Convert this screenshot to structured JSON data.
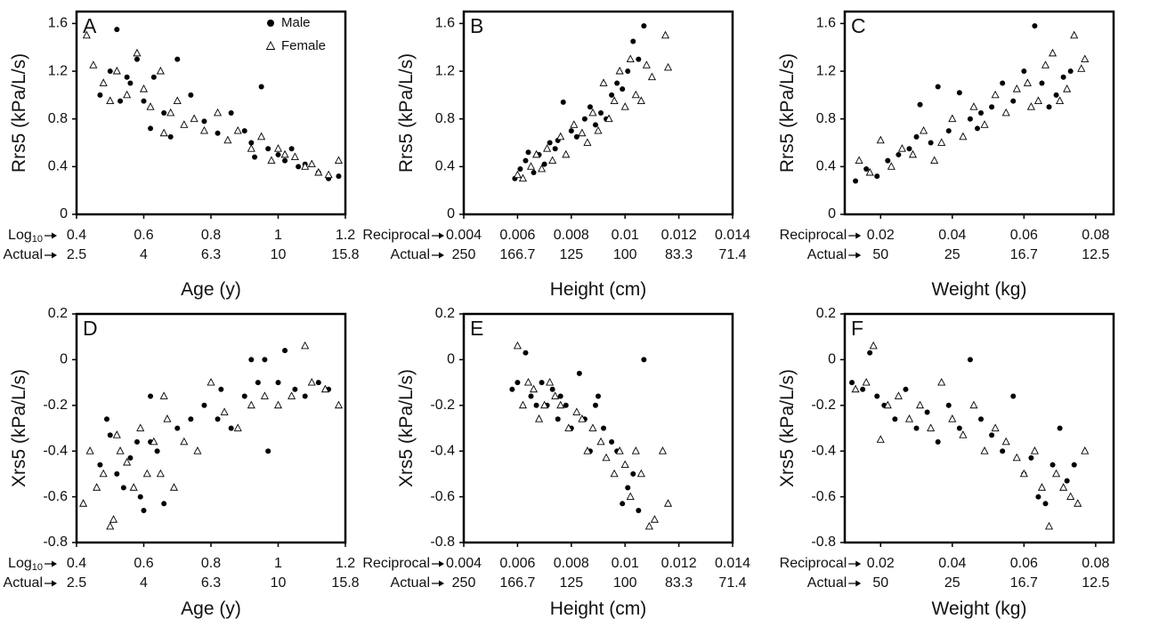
{
  "legend": {
    "male": "Male",
    "female": "Female"
  },
  "tick_labels": {
    "rrs_y": [
      "0",
      "0.4",
      "0.8",
      "1.2",
      "1.6"
    ],
    "xrs_y": [
      "-0.8",
      "-0.6",
      "-0.4",
      "-0.2",
      "0",
      "0.2"
    ],
    "age_log": [
      "0.4",
      "0.6",
      "0.8",
      "1",
      "1.2"
    ],
    "age_actual": [
      "2.5",
      "4",
      "6.3",
      "10",
      "15.8"
    ],
    "height_recip": [
      "0.004",
      "0.006",
      "0.008",
      "0.01",
      "0.012",
      "0.014"
    ],
    "height_actual": [
      "250",
      "166.7",
      "125",
      "100",
      "83.3",
      "71.4"
    ],
    "weight_recip": [
      "0.02",
      "0.04",
      "0.06",
      "0.08"
    ],
    "weight_actual": [
      "50",
      "25",
      "16.7",
      "12.5"
    ]
  },
  "row_names": {
    "log": "Log10",
    "log_base": "Log",
    "log_sub": "10",
    "reciprocal": "Reciprocal",
    "actual": "Actual"
  },
  "chart_data": [
    {
      "panel": "A",
      "type": "scatter",
      "xlabel": "Age (y)",
      "ylabel": "Rrs5 (kPa/L/s)",
      "x_scale": "log10",
      "xlim": [
        0.4,
        1.2
      ],
      "ylim": [
        0,
        1.7
      ],
      "legend_position": "top-right",
      "series": [
        {
          "name": "Male",
          "x": [
            0.47,
            0.5,
            0.52,
            0.53,
            0.55,
            0.58,
            0.6,
            0.62,
            0.66,
            0.7,
            0.74,
            0.78,
            0.82,
            0.86,
            0.9,
            0.92,
            0.95,
            0.97,
            1.0,
            1.02,
            1.04,
            1.06,
            1.08,
            1.12,
            1.15,
            1.18,
            0.63,
            0.93,
            0.56,
            0.68
          ],
          "y": [
            1.0,
            1.2,
            1.55,
            0.95,
            1.15,
            1.3,
            0.95,
            0.72,
            0.85,
            1.3,
            1.0,
            0.78,
            0.68,
            0.85,
            0.7,
            0.6,
            1.07,
            0.55,
            0.5,
            0.45,
            0.55,
            0.4,
            0.42,
            0.35,
            0.3,
            0.32,
            1.15,
            0.48,
            1.1,
            0.65
          ]
        },
        {
          "name": "Female",
          "x": [
            0.43,
            0.45,
            0.48,
            0.5,
            0.52,
            0.55,
            0.58,
            0.6,
            0.62,
            0.65,
            0.68,
            0.7,
            0.72,
            0.75,
            0.78,
            0.82,
            0.85,
            0.88,
            0.92,
            0.95,
            0.98,
            1.0,
            1.02,
            1.05,
            1.08,
            1.1,
            1.12,
            1.15,
            1.18,
            0.66
          ],
          "y": [
            1.5,
            1.25,
            1.1,
            0.95,
            1.2,
            1.0,
            1.35,
            1.05,
            0.9,
            1.2,
            0.85,
            0.95,
            0.75,
            0.8,
            0.7,
            0.85,
            0.62,
            0.7,
            0.55,
            0.65,
            0.45,
            0.55,
            0.5,
            0.48,
            0.4,
            0.42,
            0.35,
            0.33,
            0.45,
            0.68
          ]
        }
      ]
    },
    {
      "panel": "B",
      "type": "scatter",
      "xlabel": "Height (cm)",
      "ylabel": "Rrs5 (kPa/L/s)",
      "x_scale": "reciprocal",
      "xlim": [
        0.004,
        0.014
      ],
      "ylim": [
        0,
        1.7
      ],
      "series": [
        {
          "name": "Male",
          "x": [
            0.0059,
            0.0061,
            0.0063,
            0.0066,
            0.0068,
            0.007,
            0.0072,
            0.0074,
            0.0077,
            0.008,
            0.0082,
            0.0085,
            0.0087,
            0.0089,
            0.0091,
            0.0093,
            0.0095,
            0.0097,
            0.0099,
            0.0101,
            0.0103,
            0.0105,
            0.0107,
            0.0075,
            0.0064
          ],
          "y": [
            0.3,
            0.38,
            0.45,
            0.35,
            0.5,
            0.42,
            0.6,
            0.55,
            0.94,
            0.7,
            0.65,
            0.8,
            0.9,
            0.75,
            0.85,
            0.8,
            1.0,
            1.1,
            1.05,
            1.2,
            1.45,
            1.3,
            1.58,
            0.62,
            0.52
          ]
        },
        {
          "name": "Female",
          "x": [
            0.006,
            0.0062,
            0.0065,
            0.0067,
            0.0069,
            0.0071,
            0.0073,
            0.0076,
            0.0078,
            0.0081,
            0.0084,
            0.0086,
            0.0088,
            0.009,
            0.0092,
            0.0094,
            0.0096,
            0.0098,
            0.01,
            0.0102,
            0.0104,
            0.0106,
            0.0108,
            0.011,
            0.0115,
            0.0116
          ],
          "y": [
            0.33,
            0.3,
            0.4,
            0.5,
            0.38,
            0.55,
            0.45,
            0.65,
            0.5,
            0.75,
            0.68,
            0.6,
            0.85,
            0.7,
            1.1,
            0.8,
            0.95,
            1.2,
            0.9,
            1.3,
            1.0,
            0.95,
            1.25,
            1.15,
            1.5,
            1.23
          ]
        }
      ]
    },
    {
      "panel": "C",
      "type": "scatter",
      "xlabel": "Weight (kg)",
      "ylabel": "Rrs5 (kPa/L/s)",
      "x_scale": "reciprocal",
      "xlim": [
        0.01,
        0.085
      ],
      "ylim": [
        0,
        1.7
      ],
      "series": [
        {
          "name": "Male",
          "x": [
            0.013,
            0.016,
            0.019,
            0.022,
            0.025,
            0.028,
            0.031,
            0.034,
            0.036,
            0.039,
            0.042,
            0.045,
            0.048,
            0.051,
            0.054,
            0.057,
            0.06,
            0.063,
            0.065,
            0.067,
            0.069,
            0.071,
            0.073,
            0.03,
            0.047
          ],
          "y": [
            0.28,
            0.38,
            0.32,
            0.45,
            0.5,
            0.55,
            0.92,
            0.6,
            1.07,
            0.7,
            1.02,
            0.8,
            0.85,
            0.9,
            1.1,
            0.95,
            1.2,
            1.58,
            1.1,
            0.9,
            1.0,
            1.15,
            1.2,
            0.65,
            0.72
          ]
        },
        {
          "name": "Female",
          "x": [
            0.014,
            0.017,
            0.02,
            0.023,
            0.026,
            0.029,
            0.032,
            0.035,
            0.037,
            0.04,
            0.043,
            0.046,
            0.049,
            0.052,
            0.055,
            0.058,
            0.061,
            0.064,
            0.066,
            0.068,
            0.07,
            0.072,
            0.074,
            0.076,
            0.077,
            0.062
          ],
          "y": [
            0.45,
            0.35,
            0.62,
            0.4,
            0.55,
            0.5,
            0.7,
            0.45,
            0.6,
            0.8,
            0.65,
            0.9,
            0.75,
            1.0,
            0.85,
            1.05,
            1.1,
            0.95,
            1.25,
            1.35,
            0.95,
            1.05,
            1.5,
            1.22,
            1.3,
            0.9
          ]
        }
      ]
    },
    {
      "panel": "D",
      "type": "scatter",
      "xlabel": "Age (y)",
      "ylabel": "Xrs5 (kPa/L/s)",
      "x_scale": "log10",
      "xlim": [
        0.4,
        1.2
      ],
      "ylim": [
        -0.8,
        0.2
      ],
      "series": [
        {
          "name": "Male",
          "x": [
            0.47,
            0.49,
            0.5,
            0.52,
            0.54,
            0.56,
            0.58,
            0.6,
            0.62,
            0.64,
            0.66,
            0.7,
            0.74,
            0.78,
            0.82,
            0.86,
            0.9,
            0.92,
            0.94,
            0.96,
            1.0,
            1.02,
            1.05,
            1.08,
            1.12,
            1.15,
            0.59,
            0.62,
            0.83,
            0.97
          ],
          "y": [
            -0.46,
            -0.26,
            -0.33,
            -0.5,
            -0.56,
            -0.43,
            -0.36,
            -0.66,
            -0.16,
            -0.4,
            -0.63,
            -0.3,
            -0.26,
            -0.2,
            -0.26,
            -0.3,
            -0.16,
            0.0,
            -0.1,
            0.0,
            -0.1,
            0.04,
            -0.13,
            -0.16,
            -0.1,
            -0.13,
            -0.6,
            -0.36,
            -0.13,
            -0.4
          ]
        },
        {
          "name": "Female",
          "x": [
            0.42,
            0.44,
            0.46,
            0.48,
            0.5,
            0.51,
            0.53,
            0.55,
            0.57,
            0.59,
            0.61,
            0.63,
            0.65,
            0.67,
            0.69,
            0.72,
            0.76,
            0.8,
            0.84,
            0.88,
            0.92,
            0.96,
            1.0,
            1.04,
            1.08,
            1.1,
            1.14,
            1.18,
            0.52,
            0.66
          ],
          "y": [
            -0.63,
            -0.4,
            -0.56,
            -0.5,
            -0.73,
            -0.7,
            -0.4,
            -0.45,
            -0.56,
            -0.3,
            -0.5,
            -0.36,
            -0.5,
            -0.26,
            -0.56,
            -0.36,
            -0.4,
            -0.1,
            -0.23,
            -0.3,
            -0.2,
            -0.16,
            -0.2,
            -0.16,
            0.06,
            -0.1,
            -0.13,
            -0.2,
            -0.33,
            -0.16
          ]
        }
      ]
    },
    {
      "panel": "E",
      "type": "scatter",
      "xlabel": "Height (cm)",
      "ylabel": "Xrs5 (kPa/L/s)",
      "x_scale": "reciprocal",
      "xlim": [
        0.004,
        0.014
      ],
      "ylim": [
        -0.8,
        0.2
      ],
      "series": [
        {
          "name": "Male",
          "x": [
            0.0058,
            0.006,
            0.0063,
            0.0065,
            0.0067,
            0.0069,
            0.0071,
            0.0073,
            0.0075,
            0.0078,
            0.008,
            0.0083,
            0.0085,
            0.0087,
            0.009,
            0.0092,
            0.0095,
            0.0097,
            0.0099,
            0.0101,
            0.0103,
            0.0105,
            0.0107,
            0.0089,
            0.0076
          ],
          "y": [
            -0.13,
            -0.1,
            0.03,
            -0.16,
            -0.2,
            -0.1,
            -0.2,
            -0.13,
            -0.26,
            -0.2,
            -0.3,
            -0.06,
            -0.26,
            -0.4,
            -0.16,
            -0.3,
            -0.36,
            -0.4,
            -0.63,
            -0.56,
            -0.5,
            -0.66,
            0.0,
            -0.2,
            -0.16
          ]
        },
        {
          "name": "Female",
          "x": [
            0.006,
            0.0062,
            0.0064,
            0.0066,
            0.0068,
            0.007,
            0.0072,
            0.0074,
            0.0076,
            0.0079,
            0.0082,
            0.0084,
            0.0086,
            0.0088,
            0.0091,
            0.0093,
            0.0096,
            0.0098,
            0.01,
            0.0102,
            0.0104,
            0.0106,
            0.0109,
            0.0111,
            0.0114,
            0.0116
          ],
          "y": [
            0.06,
            -0.2,
            -0.1,
            -0.13,
            -0.26,
            -0.2,
            -0.1,
            -0.16,
            -0.2,
            -0.3,
            -0.23,
            -0.26,
            -0.4,
            -0.3,
            -0.36,
            -0.43,
            -0.5,
            -0.4,
            -0.46,
            -0.6,
            -0.4,
            -0.5,
            -0.73,
            -0.7,
            -0.4,
            -0.63
          ]
        }
      ]
    },
    {
      "panel": "F",
      "type": "scatter",
      "xlabel": "Weight (kg)",
      "ylabel": "Xrs5 (kPa/L/s)",
      "x_scale": "reciprocal",
      "xlim": [
        0.01,
        0.085
      ],
      "ylim": [
        -0.8,
        0.2
      ],
      "series": [
        {
          "name": "Male",
          "x": [
            0.012,
            0.015,
            0.017,
            0.019,
            0.021,
            0.024,
            0.027,
            0.03,
            0.033,
            0.036,
            0.039,
            0.042,
            0.045,
            0.048,
            0.051,
            0.054,
            0.057,
            0.06,
            0.062,
            0.064,
            0.066,
            0.068,
            0.07,
            0.072,
            0.074
          ],
          "y": [
            -0.1,
            -0.13,
            0.03,
            -0.16,
            -0.2,
            -0.26,
            -0.13,
            -0.3,
            -0.23,
            -0.36,
            -0.2,
            -0.3,
            0.0,
            -0.26,
            -0.33,
            -0.4,
            -0.16,
            -0.5,
            -0.43,
            -0.6,
            -0.63,
            -0.46,
            -0.3,
            -0.53,
            -0.46
          ]
        },
        {
          "name": "Female",
          "x": [
            0.013,
            0.016,
            0.018,
            0.02,
            0.022,
            0.025,
            0.028,
            0.031,
            0.034,
            0.037,
            0.04,
            0.043,
            0.046,
            0.049,
            0.052,
            0.055,
            0.058,
            0.06,
            0.063,
            0.065,
            0.067,
            0.069,
            0.071,
            0.073,
            0.075,
            0.077
          ],
          "y": [
            -0.13,
            -0.1,
            0.06,
            -0.35,
            -0.2,
            -0.16,
            -0.26,
            -0.2,
            -0.3,
            -0.1,
            -0.26,
            -0.33,
            -0.2,
            -0.4,
            -0.3,
            -0.36,
            -0.43,
            -0.5,
            -0.4,
            -0.56,
            -0.73,
            -0.5,
            -0.56,
            -0.6,
            -0.63,
            -0.4
          ]
        }
      ]
    }
  ]
}
